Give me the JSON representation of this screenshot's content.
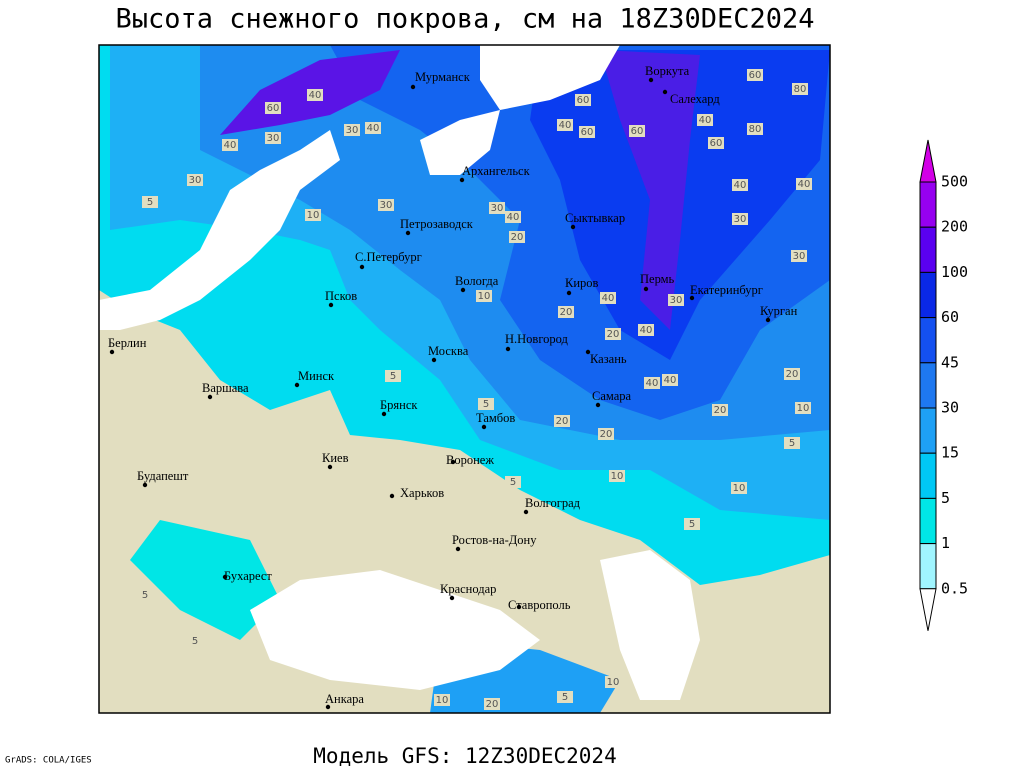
{
  "title": "Высота снежного покрова, см на 18Z30DEC2024",
  "footer": "Модель GFS: 12Z30DEC2024",
  "credit": "GrADS: COLA/IGES",
  "cities": [
    "Мурманск",
    "Архангельск",
    "Воркута",
    "Салехард",
    "Сыктывкар",
    "Петрозаводск",
    "С.Петербург",
    "Вологда",
    "Киров",
    "Пермь",
    "Екатеринбург",
    "Курган",
    "Псков",
    "Берлин",
    "Н.Новгород",
    "Москва",
    "Казань",
    "Минск",
    "Варшава",
    "Самара",
    "Брянск",
    "Тамбов",
    "Киев",
    "Воронеж",
    "Будапешт",
    "Харьков",
    "Волгоград",
    "Ростов-на-Дону",
    "Бухарест",
    "Краснодар",
    "Ставрополь",
    "Анкара"
  ],
  "contour_labels": [
    60,
    40,
    30,
    40,
    40,
    30,
    30,
    5,
    10,
    30,
    30,
    20,
    40,
    40,
    60,
    60,
    60,
    80,
    60,
    40,
    60,
    80,
    40,
    40,
    30,
    30,
    10,
    20,
    40,
    30,
    20,
    40,
    40,
    40,
    20,
    10,
    20,
    5,
    10,
    10,
    5,
    5,
    5,
    5,
    10,
    10,
    20,
    5,
    5,
    20,
    20,
    5
  ],
  "legend": {
    "levels": [
      0.5,
      1,
      5,
      15,
      30,
      45,
      60,
      100,
      200,
      500
    ],
    "colors": [
      "#ffffff",
      "#a0f5ff",
      "#00e6e6",
      "#00c8f5",
      "#1ea0f5",
      "#1e78f0",
      "#1450f0",
      "#0a28e6",
      "#5a00f0",
      "#9600f0",
      "#d200e6"
    ]
  }
}
